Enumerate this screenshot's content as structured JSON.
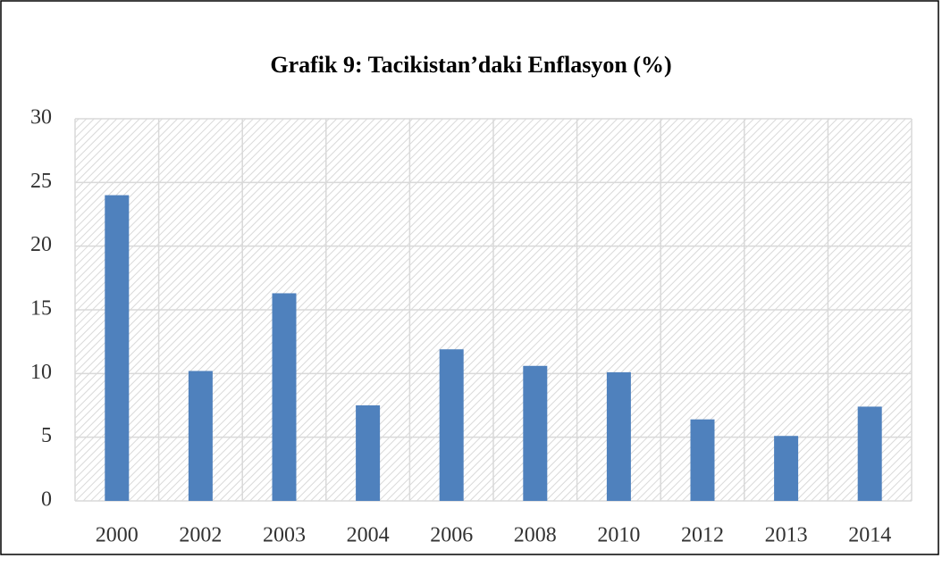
{
  "chart_data": {
    "type": "bar",
    "title": "Grafik 9: Tacikistan’daki Enflasyon (%)",
    "categories": [
      "2000",
      "2002",
      "2003",
      "2004",
      "2006",
      "2008",
      "2010",
      "2012",
      "2013",
      "2014"
    ],
    "values": [
      24,
      10.2,
      16.3,
      7.5,
      11.9,
      10.6,
      10.1,
      6.4,
      5.1,
      7.4
    ],
    "color": "#4f81bd",
    "ylim": [
      0,
      30
    ],
    "yticks": [
      0,
      5,
      10,
      15,
      20,
      25,
      30
    ],
    "grid": true
  }
}
